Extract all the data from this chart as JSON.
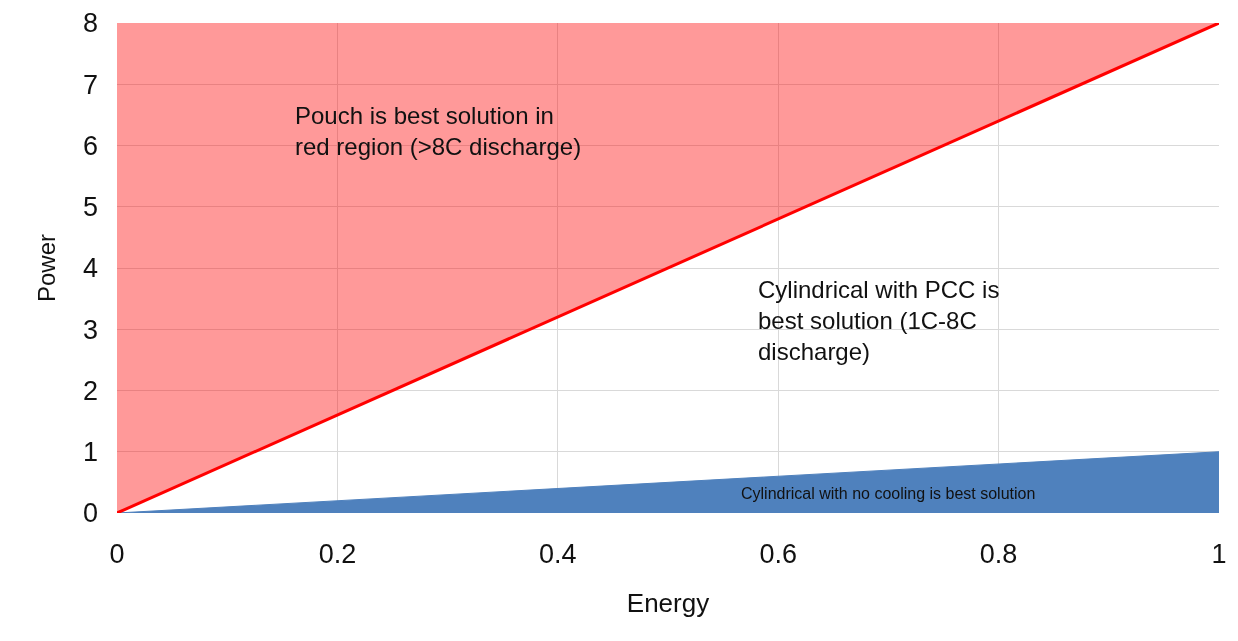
{
  "chart_data": {
    "type": "area",
    "xlabel": "Energy",
    "ylabel": "Power",
    "x": [
      0,
      1
    ],
    "series": [
      {
        "type": "line",
        "color": "#ff0000",
        "values": [
          0,
          8
        ],
        "lower": [
          0,
          8
        ],
        "upper": [
          8,
          8
        ]
      },
      {
        "color": "#4f81bd",
        "values": [
          0,
          1
        ]
      }
    ],
    "annotations": [
      "Pouch is best solution in red region (>8C discharge)",
      "Cylindrical with PCC is best solution (1C-8C discharge)",
      "Cylindrical with no cooling is best solution"
    ],
    "xlim": [
      0,
      1
    ],
    "xticks": [
      0,
      {
        "value": 0.2,
        "label": "0.2"
      },
      {
        "value": 0.4,
        "label": "0.4"
      },
      {
        "value": 0.6,
        "label": "0.6"
      },
      {
        "value": 0.8,
        "label": "0.8"
      },
      1
    ],
    "ylim": [
      0,
      8
    ],
    "yticks": [
      0,
      1,
      2,
      3,
      4,
      5,
      6,
      7,
      8
    ],
    "grid": true,
    "marker": "none",
    "line_style": "solid"
  }
}
